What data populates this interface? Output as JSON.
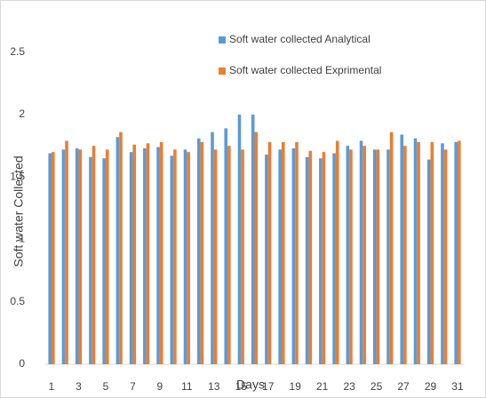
{
  "chart_data": {
    "type": "bar",
    "x_label": "Days",
    "y_label": "Soft water Collected",
    "categories": [
      1,
      null,
      3,
      null,
      5,
      null,
      7,
      null,
      9,
      null,
      11,
      null,
      13,
      null,
      15,
      null,
      17,
      null,
      19,
      null,
      21,
      null,
      23,
      null,
      25,
      null,
      27,
      null,
      29,
      null,
      31
    ],
    "series": [
      {
        "name": "Soft water collected Analytical",
        "color": "#5b9bd5",
        "values": [
          1.69,
          1.72,
          1.73,
          1.66,
          1.65,
          1.82,
          1.7,
          1.73,
          1.74,
          1.67,
          1.72,
          1.81,
          1.86,
          1.89,
          2.0,
          2.0,
          1.68,
          1.72,
          1.73,
          1.66,
          1.65,
          1.69,
          1.75,
          1.79,
          1.72,
          1.72,
          1.84,
          1.81,
          1.64,
          1.77,
          1.78
        ]
      },
      {
        "name": "Soft water collected Exprimental",
        "color": "#ed7d31",
        "values": [
          1.7,
          1.79,
          1.72,
          1.75,
          1.72,
          1.86,
          1.76,
          1.77,
          1.78,
          1.72,
          1.7,
          1.78,
          1.72,
          1.75,
          1.72,
          1.86,
          1.78,
          1.78,
          1.78,
          1.71,
          1.7,
          1.79,
          1.72,
          1.75,
          1.72,
          1.86,
          1.75,
          1.78,
          1.78,
          1.72,
          1.79
        ]
      }
    ],
    "ylim": [
      0,
      2.8
    ],
    "yticks": [
      0,
      0.5,
      1,
      1.5,
      2,
      2.5
    ],
    "grid": false
  }
}
